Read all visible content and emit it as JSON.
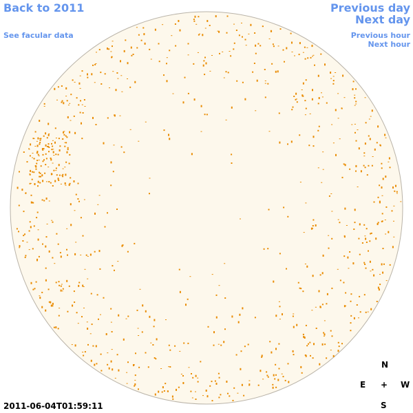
{
  "links": {
    "back": "Back to 2011",
    "facular": "See facular data",
    "previous_day": "Previous day",
    "next_day": "Next day",
    "previous_hour": "Previous hour",
    "next_hour": "Next hour"
  },
  "timestamp": "2011-06-04T01:59:11",
  "compass": {
    "north": "N",
    "east": "E",
    "center": "+",
    "west": "W",
    "south": "S"
  }
}
